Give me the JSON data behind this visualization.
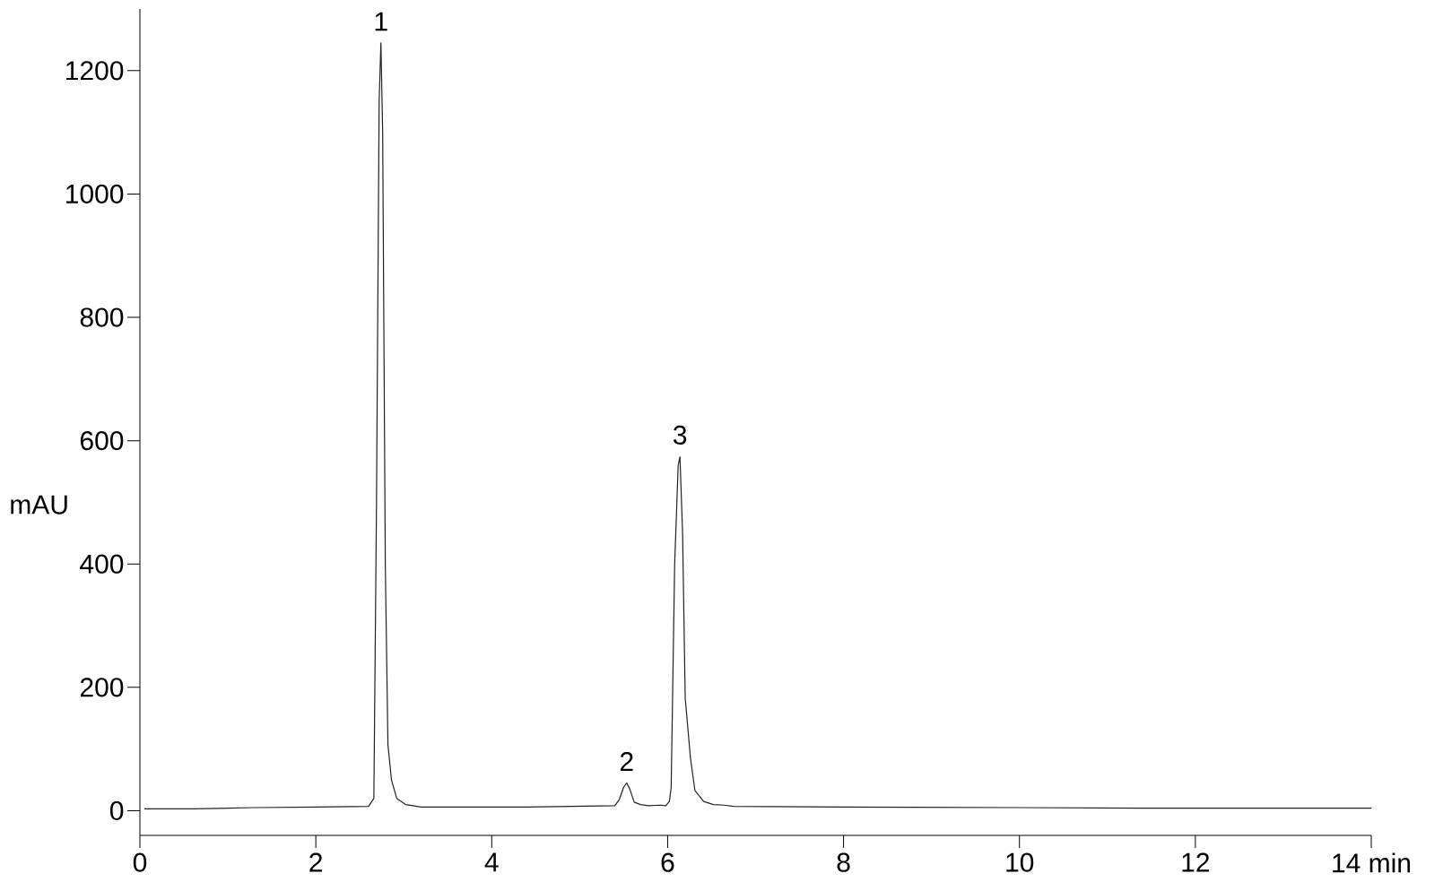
{
  "chart_data": {
    "type": "line",
    "xlabel": null,
    "ylabel": "mAU",
    "xlim": [
      0,
      14
    ],
    "ylim": [
      -40,
      1300
    ],
    "xticks": [
      0,
      2,
      4,
      6,
      8,
      10,
      12,
      {
        "value": 14,
        "label": "14 min"
      }
    ],
    "yticks": [
      0,
      200,
      400,
      600,
      800,
      1000,
      1200
    ],
    "grid": false,
    "marker": "none",
    "line_style": "solid",
    "series": [
      {
        "color": "#222222",
        "x": [
          0.05,
          0.6,
          1.3,
          2.0,
          2.6,
          2.66,
          2.69,
          2.72,
          2.74,
          2.76,
          2.79,
          2.82,
          2.86,
          2.92,
          3.02,
          3.2,
          4.4,
          5.4,
          5.45,
          5.5,
          5.535,
          5.57,
          5.62,
          5.69,
          5.78,
          5.92,
          5.98,
          6.02,
          6.04,
          6.08,
          6.12,
          6.14,
          6.17,
          6.2,
          6.26,
          6.31,
          6.41,
          6.52,
          6.64,
          6.75,
          8.0,
          10.0,
          11.7,
          14.0
        ],
        "values": [
          3,
          3,
          5,
          6,
          7,
          20,
          500,
          1150,
          1245,
          1100,
          400,
          107,
          50,
          20,
          10,
          6,
          6,
          8,
          18,
          38,
          45,
          35,
          14,
          10,
          8,
          9,
          8,
          15,
          37,
          400,
          560,
          574,
          450,
          182,
          85,
          33,
          15,
          10,
          9,
          7,
          6,
          5,
          4,
          4
        ]
      }
    ],
    "annotations": [
      {
        "text": "1",
        "x": 2.74,
        "y": 1245
      },
      {
        "text": "2",
        "x": 5.535,
        "y": 45
      },
      {
        "text": "3",
        "x": 6.14,
        "y": 574
      }
    ]
  }
}
